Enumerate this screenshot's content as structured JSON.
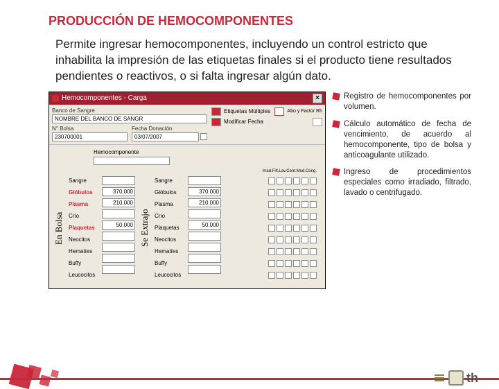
{
  "title": "PRODUCCIÓN DE HEMOCOMPONENTES",
  "description": "Permite ingresar hemocomponentes, incluyendo un control estricto que inhabilita la impresión de las etiquetas finales si el producto tiene resultados pendientes o reactivos, o si falta ingresar algún dato.",
  "window": {
    "title": "Hemocomponentes - Carga",
    "bank_label": "Banco de Sangre",
    "bank_value": "NOMBRE DEL BANCO DE SANGR",
    "nbolsa_label": "N° Bolsa",
    "nbolsa_value": "230700001",
    "fecha_label": "Fecha Donación",
    "fecha_value": "03/07/2007",
    "btn_etiquetas": "Etiquetas Múltiples",
    "btn_modificar": "Modificar Fecha",
    "btn_abo": "Abo y Factor Rh",
    "hemo_label": "Hemocomponente",
    "col_right_header": "Irrad.Filt.Lav.Cent.Mod.Cong.",
    "rows": [
      {
        "label": "Sangre",
        "red": false,
        "v1": "",
        "v2": ""
      },
      {
        "label": "Glóbulos",
        "red": true,
        "v1": "370.000",
        "v2": "370.000"
      },
      {
        "label": "Plasma",
        "red": true,
        "v1": "210.000",
        "v2": "210.000"
      },
      {
        "label": "Crío",
        "red": false,
        "v1": "",
        "v2": ""
      },
      {
        "label": "Plaquetas",
        "red": true,
        "v1": "50.000",
        "v2": "50.000"
      },
      {
        "label": "Neocitos",
        "red": false,
        "v1": "",
        "v2": ""
      },
      {
        "label": "Hematíes",
        "red": false,
        "v1": "",
        "v2": ""
      },
      {
        "label": "Buffy",
        "red": false,
        "v1": "",
        "v2": ""
      },
      {
        "label": "Leucocitos",
        "red": false,
        "v1": "",
        "v2": ""
      }
    ],
    "vert1": "En Bolsa",
    "vert2": "Se Extrajo"
  },
  "bullets": [
    "Registro de hemocomponentes por volumen.",
    "Cálculo automático de fecha de vencimiento, de acuerdo al hemocomponente, tipo de bolsa y anticoagulante utilizado.",
    "Ingreso de procedimientos especiales como irradiado, filtrado, lavado o centrifugado."
  ],
  "footer_brand": "th",
  "colors": {
    "primary": "#c82838",
    "window_bg": "#ede9df",
    "titlebar": "#a02030"
  }
}
